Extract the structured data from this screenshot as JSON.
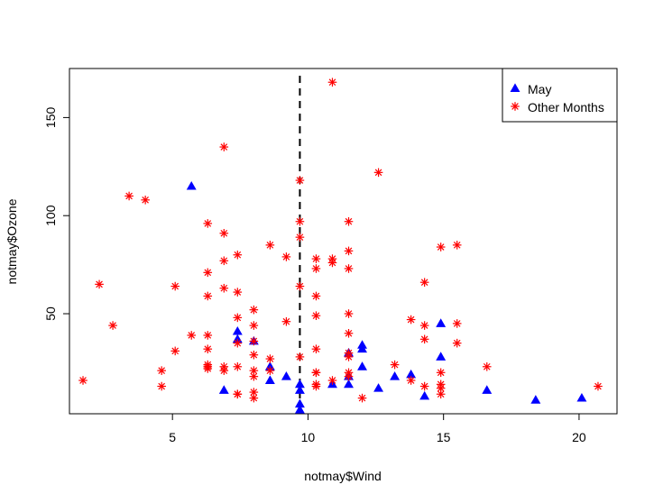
{
  "chart_data": {
    "type": "scatter",
    "xlabel": "notmay$Wind",
    "ylabel": "notmay$Ozone",
    "xlim": [
      1.2,
      21.4
    ],
    "ylim": [
      -1,
      175
    ],
    "x_ticks": [
      5,
      10,
      15,
      20
    ],
    "y_ticks": [
      50,
      100,
      150
    ],
    "grid": false,
    "legend_position": "top-right",
    "vline": {
      "x": 9.7,
      "style": "dashed"
    },
    "series": [
      {
        "name": "May",
        "marker": "triangle",
        "color": "#0000FF",
        "points": [
          [
            7.4,
            41
          ],
          [
            8.0,
            36
          ],
          [
            12.6,
            12
          ],
          [
            11.5,
            18
          ],
          [
            14.3,
            8
          ],
          [
            14.9,
            28
          ],
          [
            8.6,
            23
          ],
          [
            13.8,
            19
          ],
          [
            20.1,
            7
          ],
          [
            8.6,
            16
          ],
          [
            6.9,
            11
          ],
          [
            9.7,
            14
          ],
          [
            9.2,
            18
          ],
          [
            10.9,
            14
          ],
          [
            13.2,
            18
          ],
          [
            11.5,
            14
          ],
          [
            12.0,
            34
          ],
          [
            18.4,
            6
          ],
          [
            11.5,
            30
          ],
          [
            9.7,
            11
          ],
          [
            9.7,
            1
          ],
          [
            16.6,
            11
          ],
          [
            9.7,
            4
          ],
          [
            12.0,
            32
          ],
          [
            12.0,
            23
          ],
          [
            14.9,
            45
          ],
          [
            5.7,
            115
          ],
          [
            7.4,
            37
          ]
        ]
      },
      {
        "name": "Other Months",
        "marker": "asterisk",
        "color": "#FF0000",
        "points": [
          [
            8.0,
            29
          ],
          [
            6.3,
            71
          ],
          [
            5.7,
            39
          ],
          [
            7.4,
            23
          ],
          [
            8.6,
            21
          ],
          [
            14.3,
            37
          ],
          [
            14.9,
            20
          ],
          [
            14.9,
            12
          ],
          [
            14.3,
            13
          ],
          [
            6.9,
            135
          ],
          [
            10.3,
            49
          ],
          [
            6.3,
            32
          ],
          [
            5.1,
            64
          ],
          [
            11.5,
            40
          ],
          [
            6.9,
            77
          ],
          [
            9.7,
            97
          ],
          [
            11.5,
            97
          ],
          [
            8.6,
            85
          ],
          [
            8.0,
            10
          ],
          [
            8.6,
            27
          ],
          [
            12.0,
            7
          ],
          [
            7.4,
            48
          ],
          [
            7.4,
            35
          ],
          [
            7.4,
            61
          ],
          [
            9.2,
            79
          ],
          [
            6.9,
            63
          ],
          [
            13.8,
            16
          ],
          [
            7.4,
            80
          ],
          [
            4.0,
            108
          ],
          [
            10.3,
            20
          ],
          [
            8.0,
            52
          ],
          [
            11.5,
            82
          ],
          [
            11.5,
            50
          ],
          [
            9.7,
            64
          ],
          [
            10.3,
            59
          ],
          [
            6.3,
            39
          ],
          [
            7.4,
            9
          ],
          [
            10.9,
            16
          ],
          [
            10.3,
            78
          ],
          [
            15.5,
            35
          ],
          [
            14.3,
            66
          ],
          [
            12.6,
            122
          ],
          [
            9.7,
            89
          ],
          [
            3.4,
            110
          ],
          [
            8.0,
            44
          ],
          [
            9.7,
            28
          ],
          [
            2.3,
            65
          ],
          [
            6.3,
            22
          ],
          [
            6.3,
            59
          ],
          [
            6.9,
            23
          ],
          [
            5.1,
            31
          ],
          [
            2.8,
            44
          ],
          [
            4.6,
            21
          ],
          [
            7.4,
            9
          ],
          [
            15.5,
            45
          ],
          [
            10.9,
            168
          ],
          [
            10.3,
            73
          ],
          [
            10.9,
            76
          ],
          [
            9.7,
            118
          ],
          [
            14.9,
            84
          ],
          [
            15.5,
            85
          ],
          [
            6.3,
            96
          ],
          [
            10.9,
            78
          ],
          [
            11.5,
            73
          ],
          [
            6.9,
            91
          ],
          [
            13.8,
            47
          ],
          [
            10.3,
            32
          ],
          [
            10.3,
            20
          ],
          [
            16.6,
            23
          ],
          [
            6.9,
            21
          ],
          [
            13.2,
            24
          ],
          [
            14.3,
            44
          ],
          [
            8.0,
            21
          ],
          [
            11.5,
            28
          ],
          [
            14.9,
            9
          ],
          [
            20.7,
            13
          ],
          [
            9.2,
            46
          ],
          [
            11.5,
            18
          ],
          [
            10.3,
            13
          ],
          [
            6.3,
            24
          ],
          [
            1.7,
            16
          ],
          [
            4.6,
            13
          ],
          [
            6.3,
            23
          ],
          [
            8.0,
            36
          ],
          [
            8.0,
            7
          ],
          [
            10.3,
            14
          ],
          [
            11.5,
            30
          ],
          [
            14.9,
            14
          ],
          [
            8.0,
            18
          ],
          [
            11.5,
            20
          ]
        ]
      }
    ]
  }
}
